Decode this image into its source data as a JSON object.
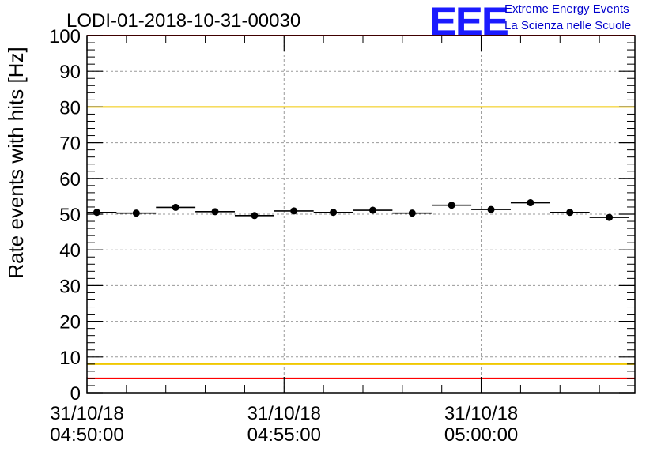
{
  "logo": {
    "mark": "EEE",
    "line1": "Extreme Energy Events",
    "line2": "La Scienza nelle Scuole",
    "color": "#1a1aff"
  },
  "chart_data": {
    "type": "scatter",
    "title": "LODI-01-2018-10-31-00030",
    "xlabel": "",
    "ylabel": "Rate events with hits [Hz]",
    "ylim": [
      0,
      100
    ],
    "xlim_minutes": [
      0,
      13.9
    ],
    "x_tick_labels": [
      {
        "minute": 0,
        "date": "31/10/18",
        "time": "04:50:00"
      },
      {
        "minute": 5,
        "date": "31/10/18",
        "time": "04:55:00"
      },
      {
        "minute": 10,
        "date": "31/10/18",
        "time": "05:00:00"
      }
    ],
    "y_ticks": [
      0,
      10,
      20,
      30,
      40,
      50,
      60,
      70,
      80,
      90,
      100
    ],
    "grid": true,
    "bin_width_minutes": 1,
    "series": [
      {
        "name": "rate",
        "x_minutes": [
          0.25,
          1.25,
          2.25,
          3.25,
          4.25,
          5.25,
          6.25,
          7.25,
          8.25,
          9.25,
          10.25,
          11.25,
          12.25,
          13.25
        ],
        "values": [
          50.5,
          50.3,
          51.9,
          50.7,
          49.6,
          50.9,
          50.5,
          51.1,
          50.3,
          52.5,
          51.3,
          53.2,
          50.5,
          49.1
        ]
      }
    ],
    "reference_lines": [
      {
        "y": 100,
        "color": "#ff0000"
      },
      {
        "y": 80,
        "color": "#f0c800"
      },
      {
        "y": 8,
        "color": "#f0c800"
      },
      {
        "y": 4,
        "color": "#ff0000"
      }
    ]
  }
}
